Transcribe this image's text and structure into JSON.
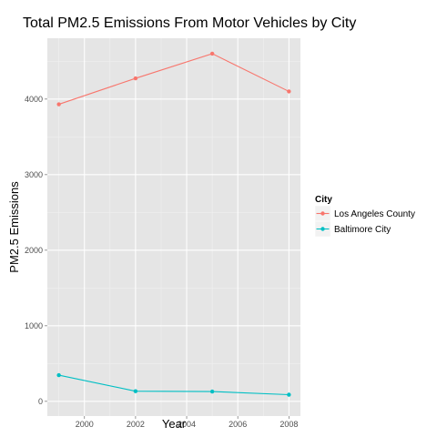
{
  "chart_data": {
    "type": "line",
    "title": "Total PM2.5 Emissions From Motor Vehicles by City",
    "xlabel": "Year",
    "ylabel": "PM2.5 Emissions",
    "x": [
      1999,
      2002,
      2005,
      2008
    ],
    "xlim": [
      1998.55,
      2008.45
    ],
    "ylim": [
      -195,
      4805
    ],
    "xticks": [
      2000,
      2002,
      2004,
      2006,
      2008
    ],
    "yticks": [
      0,
      1000,
      2000,
      3000,
      4000
    ],
    "grid": true,
    "legend": {
      "title": "City",
      "position": "right"
    },
    "series": [
      {
        "name": "Los Angeles County",
        "color": "#F8766D",
        "values": [
          3931,
          4274,
          4601,
          4101
        ]
      },
      {
        "name": "Baltimore City",
        "color": "#00BFC4",
        "values": [
          346,
          134,
          130,
          88
        ]
      }
    ]
  }
}
